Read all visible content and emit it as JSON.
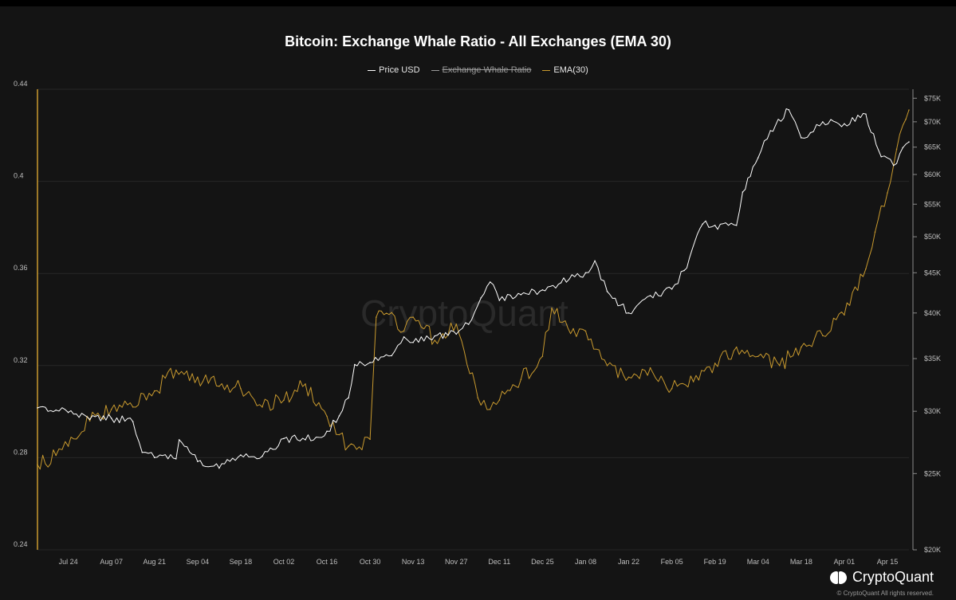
{
  "chart_data": {
    "type": "line",
    "title": "Bitcoin: Exchange Whale Ratio - All Exchanges (EMA 30)",
    "watermark": "CryptoQuant",
    "legend_placement": "top-center",
    "grid": true,
    "x_tick_labels": [
      "Jul 24",
      "Aug 07",
      "Aug 21",
      "Sep 04",
      "Sep 18",
      "Oct 02",
      "Oct 16",
      "Oct 30",
      "Nov 13",
      "Nov 27",
      "Dec 11",
      "Dec 25",
      "Jan 08",
      "Jan 22",
      "Feb 05",
      "Feb 19",
      "Mar 04",
      "Mar 18",
      "Apr 01",
      "Apr 15"
    ],
    "x_range": [
      "2023-07-14",
      "2024-04-22"
    ],
    "left_axis": {
      "ticks": [
        "0.24",
        "0.28",
        "0.32",
        "0.36",
        "0.4",
        "0.44"
      ],
      "range": [
        0.24,
        0.44
      ],
      "scale": "linear"
    },
    "right_axis": {
      "ticks": [
        "$20K",
        "$25K",
        "$30K",
        "$35K",
        "$40K",
        "$45K",
        "$50K",
        "$55K",
        "$60K",
        "$65K",
        "$70K",
        "$75K"
      ],
      "range": [
        20000,
        77000
      ],
      "scale": "log"
    },
    "series": [
      {
        "name": "Price USD",
        "axis": "right",
        "color": "#ffffff",
        "visible": true,
        "x": [
          "2023-07-14",
          "2023-07-20",
          "2023-07-24",
          "2023-07-31",
          "2023-08-07",
          "2023-08-14",
          "2023-08-17",
          "2023-08-21",
          "2023-08-28",
          "2023-08-29",
          "2023-09-04",
          "2023-09-11",
          "2023-09-18",
          "2023-09-25",
          "2023-10-02",
          "2023-10-09",
          "2023-10-16",
          "2023-10-20",
          "2023-10-23",
          "2023-10-25",
          "2023-10-30",
          "2023-11-06",
          "2023-11-10",
          "2023-11-13",
          "2023-11-20",
          "2023-11-27",
          "2023-12-01",
          "2023-12-05",
          "2023-12-08",
          "2023-12-11",
          "2023-12-18",
          "2023-12-25",
          "2023-12-31",
          "2024-01-08",
          "2024-01-11",
          "2024-01-15",
          "2024-01-22",
          "2024-01-29",
          "2024-02-05",
          "2024-02-09",
          "2024-02-15",
          "2024-02-19",
          "2024-02-26",
          "2024-02-28",
          "2024-03-04",
          "2024-03-08",
          "2024-03-14",
          "2024-03-18",
          "2024-03-21",
          "2024-03-25",
          "2024-04-01",
          "2024-04-08",
          "2024-04-13",
          "2024-04-17",
          "2024-04-20",
          "2024-04-22"
        ],
        "values": [
          30300,
          30100,
          29900,
          29300,
          29400,
          29100,
          26600,
          26200,
          26100,
          27600,
          25900,
          25400,
          26400,
          26300,
          27700,
          27600,
          28300,
          29600,
          31200,
          34400,
          34600,
          35300,
          37300,
          36700,
          37400,
          37600,
          38700,
          41800,
          43800,
          41500,
          42200,
          42800,
          43700,
          45000,
          46600,
          42600,
          40000,
          42100,
          42900,
          45300,
          51900,
          51700,
          51700,
          57000,
          63000,
          68200,
          72500,
          66800,
          67800,
          70000,
          69600,
          71600,
          63200,
          61600,
          64900,
          66000
        ]
      },
      {
        "name": "Exchange Whale Ratio",
        "axis": "left",
        "visible": false,
        "values": []
      },
      {
        "name": "EMA(30)",
        "axis": "left",
        "color": "#c99a2e",
        "visible": true,
        "x": [
          "2023-07-14",
          "2023-07-20",
          "2023-07-24",
          "2023-07-31",
          "2023-08-07",
          "2023-08-14",
          "2023-08-21",
          "2023-08-28",
          "2023-09-04",
          "2023-09-11",
          "2023-09-18",
          "2023-09-25",
          "2023-10-02",
          "2023-10-09",
          "2023-10-16",
          "2023-10-20",
          "2023-10-23",
          "2023-10-30",
          "2023-11-01",
          "2023-11-06",
          "2023-11-10",
          "2023-11-13",
          "2023-11-20",
          "2023-11-27",
          "2023-12-04",
          "2023-12-08",
          "2023-12-11",
          "2023-12-18",
          "2023-12-25",
          "2023-12-28",
          "2024-01-04",
          "2024-01-08",
          "2024-01-15",
          "2024-01-22",
          "2024-01-29",
          "2024-02-05",
          "2024-02-12",
          "2024-02-19",
          "2024-02-26",
          "2024-03-04",
          "2024-03-11",
          "2024-03-18",
          "2024-03-25",
          "2024-04-01",
          "2024-04-08",
          "2024-04-11",
          "2024-04-15",
          "2024-04-18",
          "2024-04-21",
          "2024-04-22"
        ],
        "values": [
          0.277,
          0.281,
          0.285,
          0.296,
          0.301,
          0.302,
          0.309,
          0.318,
          0.315,
          0.311,
          0.31,
          0.302,
          0.305,
          0.312,
          0.298,
          0.29,
          0.285,
          0.288,
          0.341,
          0.343,
          0.335,
          0.341,
          0.331,
          0.338,
          0.306,
          0.301,
          0.305,
          0.314,
          0.324,
          0.345,
          0.336,
          0.335,
          0.32,
          0.315,
          0.319,
          0.31,
          0.313,
          0.321,
          0.328,
          0.324,
          0.32,
          0.328,
          0.333,
          0.342,
          0.362,
          0.378,
          0.395,
          0.414,
          0.427,
          0.431
        ]
      }
    ]
  },
  "brand": {
    "name": "CryptoQuant",
    "copyright": "© CryptoQuant All rights reserved."
  }
}
